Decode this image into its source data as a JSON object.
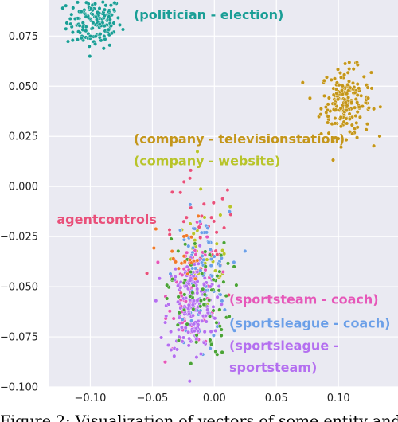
{
  "chart_data": {
    "type": "scatter",
    "xlim": [
      -0.133,
      0.148
    ],
    "ylim": [
      -0.1,
      0.093
    ],
    "x_ticks": [
      -0.1,
      -0.05,
      0.0,
      0.05,
      0.1
    ],
    "x_tick_labels": [
      "−0.10",
      "−0.05",
      "0.00",
      "0.05",
      "0.10"
    ],
    "y_ticks": [
      0.075,
      0.05,
      0.025,
      0.0,
      -0.025,
      -0.05,
      -0.075,
      -0.1
    ],
    "y_tick_labels": [
      "0.075",
      "0.050",
      "0.025",
      "0.000",
      "−0.025",
      "−0.050",
      "−0.075",
      "−0.100"
    ],
    "grid": true,
    "background": "#eaeaf2",
    "series": [
      {
        "name": "(politician - election)",
        "color": "#1a9e96",
        "center": [
          -0.097,
          0.082
        ],
        "spread": [
          0.011,
          0.0065
        ],
        "count": 150
      },
      {
        "name": "(company - televisionstation)",
        "color": "#c4961a",
        "center": [
          0.106,
          0.042
        ],
        "spread": [
          0.01,
          0.0085
        ],
        "count": 190
      },
      {
        "name": "(company - website)",
        "color": "#b8c42a",
        "center": [
          -0.008,
          -0.035
        ],
        "spread": [
          0.013,
          0.016
        ],
        "count": 45
      },
      {
        "name": "agentcontrols",
        "color": "#e9507a",
        "center": [
          -0.012,
          -0.028
        ],
        "spread": [
          0.016,
          0.017
        ],
        "count": 35
      },
      {
        "name": "(sportsteam - coach)",
        "color": "#e657b9",
        "center": [
          -0.017,
          -0.052
        ],
        "spread": [
          0.01,
          0.014
        ],
        "count": 80
      },
      {
        "name": "(sportsleague - coach)",
        "color": "#6b9fe8",
        "center": [
          -0.01,
          -0.045
        ],
        "spread": [
          0.011,
          0.016
        ],
        "count": 80
      },
      {
        "name": "(sportsleague - sportsteam)",
        "color": "#b46ff0",
        "center": [
          -0.018,
          -0.06
        ],
        "spread": [
          0.01,
          0.013
        ],
        "count": 180
      },
      {
        "name": "",
        "color": "#4aa336",
        "center": [
          -0.013,
          -0.055
        ],
        "spread": [
          0.013,
          0.015
        ],
        "count": 70
      },
      {
        "name": "",
        "color": "#f07a2a",
        "center": [
          -0.027,
          -0.035
        ],
        "spread": [
          0.01,
          0.01
        ],
        "count": 20
      }
    ],
    "annotations": [
      {
        "text": "(politician - election)",
        "color": "#1a9e96",
        "x": -0.065,
        "y": 0.0835
      },
      {
        "text": "(company - televisionstation)",
        "color": "#c4961a",
        "x": -0.065,
        "y": 0.0215
      },
      {
        "text": "(company - website)",
        "color": "#b8c42a",
        "x": -0.065,
        "y": 0.0105
      },
      {
        "text": "agentcontrols",
        "color": "#e9507a",
        "x": -0.127,
        "y": -0.0185
      },
      {
        "text": "(sportsteam - coach)",
        "color": "#e657b9",
        "x": 0.012,
        "y": -0.0585
      },
      {
        "text": "(sportsleague - coach)",
        "color": "#6b9fe8",
        "x": 0.012,
        "y": -0.0705
      },
      {
        "text": "(sportsleague -",
        "color": "#b46ff0",
        "x": 0.012,
        "y": -0.0815
      },
      {
        "text": "sportsteam)",
        "color": "#b46ff0",
        "x": 0.012,
        "y": -0.0925
      }
    ]
  },
  "caption": "Figure 2: Visualization of vectors of some entity and"
}
